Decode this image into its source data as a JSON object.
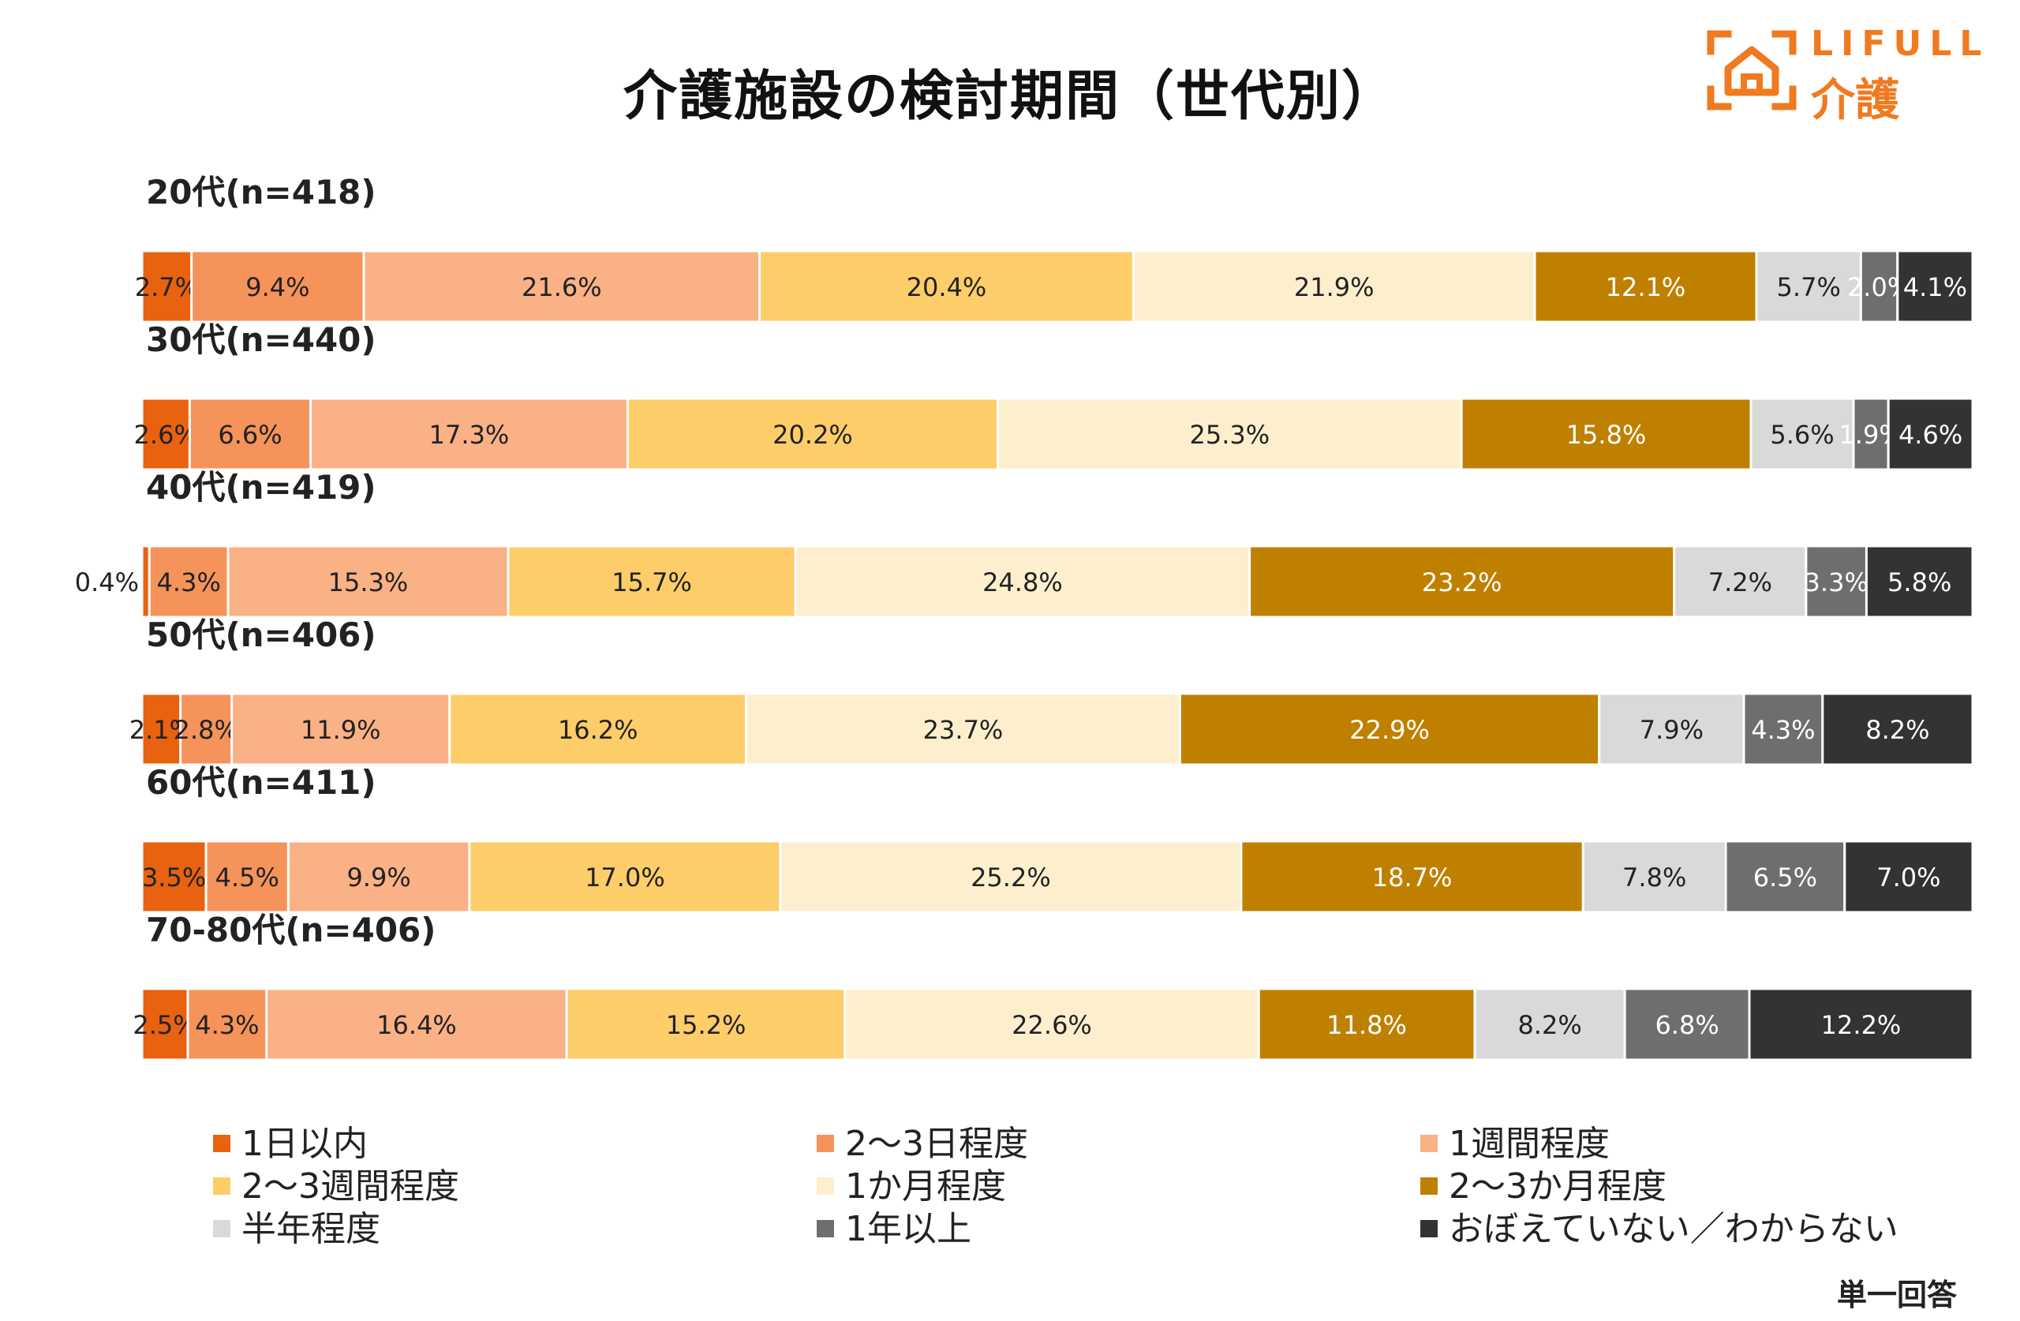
{
  "title": "介護施設の検討期間（世代別）",
  "logo": {
    "brand": "LIFULL",
    "sub": "介護"
  },
  "note": "単一回答",
  "colors": [
    "#e8620f",
    "#f5935a",
    "#fab185",
    "#fdcd69",
    "#fdefcd",
    "#bf8000",
    "#d9d9d9",
    "#6e6e6e",
    "#333333"
  ],
  "chart_data": {
    "type": "bar",
    "orientation": "horizontal-stacked-100",
    "title": "介護施設の検討期間（世代別）",
    "categories": [
      "20代(n=418)",
      "30代(n=440)",
      "40代(n=419)",
      "50代(n=406)",
      "60代(n=411)",
      "70-80代(n=406)"
    ],
    "series": [
      {
        "name": "1日以内",
        "values": [
          2.7,
          2.6,
          0.4,
          2.1,
          3.5,
          2.5
        ]
      },
      {
        "name": "2〜3日程度",
        "values": [
          9.4,
          6.6,
          4.3,
          2.8,
          4.5,
          4.3
        ]
      },
      {
        "name": "1週間程度",
        "values": [
          21.6,
          17.3,
          15.3,
          11.9,
          9.9,
          16.4
        ]
      },
      {
        "name": "2〜3週間程度",
        "values": [
          20.4,
          20.2,
          15.7,
          16.2,
          17.0,
          15.2
        ]
      },
      {
        "name": "1か月程度",
        "values": [
          21.9,
          25.3,
          24.8,
          23.7,
          25.2,
          22.6
        ]
      },
      {
        "name": "2〜3か月程度",
        "values": [
          12.1,
          15.8,
          23.2,
          22.9,
          18.7,
          11.8
        ]
      },
      {
        "name": "半年程度",
        "values": [
          5.7,
          5.6,
          7.2,
          7.9,
          7.8,
          8.2
        ]
      },
      {
        "name": "1年以上",
        "values": [
          2.0,
          1.9,
          3.3,
          4.3,
          6.5,
          6.8
        ]
      },
      {
        "name": "おぼえていない／わからない",
        "values": [
          4.1,
          4.6,
          5.8,
          8.2,
          7.0,
          12.2
        ]
      }
    ],
    "labels": [
      [
        "2.7%",
        "9.4%",
        "21.6%",
        "20.4%",
        "21.9%",
        "12.1%",
        "5.7%",
        "2.0%",
        "4.1%"
      ],
      [
        "2.6%",
        "6.6%",
        "17.3%",
        "20.2%",
        "25.3%",
        "15.8%",
        "5.6%",
        "1.9%",
        "4.6%"
      ],
      [
        "0.4%",
        "4.3%",
        "15.3%",
        "15.7%",
        "24.8%",
        "23.2%",
        "7.2%",
        "3.3%",
        "5.8%"
      ],
      [
        "2.1%",
        "2.8%",
        "11.9%",
        "16.2%",
        "23.7%",
        "22.9%",
        "7.9%",
        "4.3%",
        "8.2%"
      ],
      [
        "3.5%",
        "4.5%",
        "9.9%",
        "17.0%",
        "25.2%",
        "18.7%",
        "7.8%",
        "6.5%",
        "7.0%"
      ],
      [
        "2.5%",
        "4.3%",
        "16.4%",
        "15.2%",
        "22.6%",
        "11.8%",
        "8.2%",
        "6.8%",
        "12.2%"
      ]
    ],
    "legend_position": "bottom",
    "grid": false
  }
}
